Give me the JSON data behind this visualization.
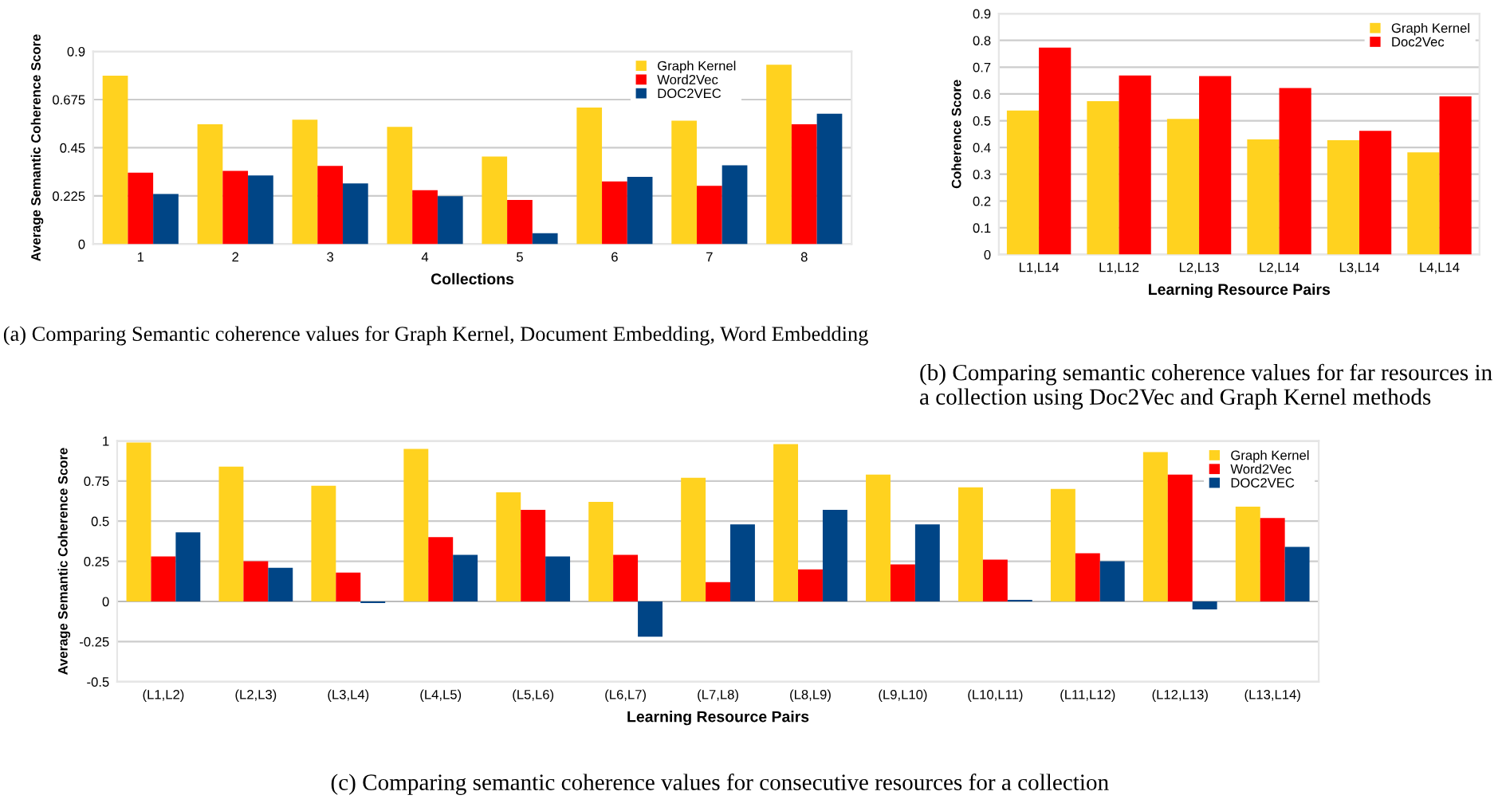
{
  "chart_data": [
    {
      "type": "bar",
      "xlabel": "Collections",
      "ylabel": "Average Semantic Coherence Score",
      "categories": [
        "1",
        "2",
        "3",
        "4",
        "5",
        "6",
        "7",
        "8"
      ],
      "series": [
        {
          "name": "Graph Kernel",
          "color": "#ffd21f",
          "values": [
            0.787,
            0.56,
            0.581,
            0.548,
            0.409,
            0.638,
            0.576,
            0.838
          ]
        },
        {
          "name": "Word2Vec",
          "color": "#ff0000",
          "values": [
            0.334,
            0.342,
            0.365,
            0.252,
            0.206,
            0.293,
            0.272,
            0.56
          ]
        },
        {
          "name": "DOC2VEC",
          "color": "#004586",
          "values": [
            0.234,
            0.321,
            0.283,
            0.224,
            0.051,
            0.314,
            0.368,
            0.609
          ]
        }
      ],
      "ylim": [
        0,
        0.9
      ],
      "yticks": [
        0,
        0.225,
        0.45,
        0.675,
        0.9
      ],
      "grid": "y",
      "legend": "top right",
      "annotations": [
        "(a) Comparing Semantic coherence values for Graph Kernel, Document Embedding, Word Embedding"
      ]
    },
    {
      "type": "bar",
      "xlabel": "Learning Resource Pairs",
      "ylabel": "Coherence Score",
      "categories": [
        "L1,L14",
        "L1,L12",
        "L2,L13",
        "L2,L14",
        "L3,L14",
        "L4,L14"
      ],
      "series": [
        {
          "name": "Graph Kernel",
          "color": "#ffd21f",
          "values": [
            0.538,
            0.573,
            0.507,
            0.43,
            0.427,
            0.382
          ]
        },
        {
          "name": "Doc2Vec",
          "color": "#ff0000",
          "values": [
            0.773,
            0.669,
            0.667,
            0.622,
            0.462,
            0.591
          ]
        }
      ],
      "ylim": [
        0,
        0.9
      ],
      "yticks": [
        0,
        0.1,
        0.2,
        0.3,
        0.4,
        0.5,
        0.6,
        0.7,
        0.8,
        0.9
      ],
      "grid": "y",
      "legend": "top right",
      "annotations": [
        "(b) Comparing semantic coherence values for far resources in a collection using Doc2Vec and Graph Kernel methods"
      ]
    },
    {
      "type": "bar",
      "xlabel": "Learning Resource Pairs",
      "ylabel": "Average Semantic Coherence Score",
      "categories": [
        "(L1,L2)",
        "(L2,L3)",
        "(L3,L4)",
        "(L4,L5)",
        "(L5,L6)",
        "(L6,L7)",
        "(L7,L8)",
        "(L8,L9)",
        "(L9,L10)",
        "(L10,L11)",
        "(L11,L12)",
        "(L12,L13)",
        "(L13,L14)"
      ],
      "series": [
        {
          "name": "Graph Kernel",
          "color": "#ffd21f",
          "values": [
            0.99,
            0.84,
            0.72,
            0.95,
            0.68,
            0.62,
            0.77,
            0.98,
            0.79,
            0.71,
            0.7,
            0.93,
            0.59
          ]
        },
        {
          "name": "Word2Vec",
          "color": "#ff0000",
          "values": [
            0.28,
            0.25,
            0.18,
            0.4,
            0.57,
            0.29,
            0.12,
            0.2,
            0.23,
            0.26,
            0.3,
            0.79,
            0.52
          ]
        },
        {
          "name": "DOC2VEC",
          "color": "#004586",
          "values": [
            0.43,
            0.21,
            -0.01,
            0.29,
            0.28,
            -0.22,
            0.48,
            0.57,
            0.48,
            0.01,
            0.25,
            -0.05,
            0.34
          ]
        }
      ],
      "ylim": [
        -0.5,
        1
      ],
      "yticks": [
        -0.5,
        -0.25,
        0,
        0.25,
        0.5,
        0.75,
        1
      ],
      "grid": "y",
      "legend": "top right",
      "annotations": [
        "(c) Comparing semantic coherence values for consecutive resources for a collection"
      ]
    }
  ]
}
